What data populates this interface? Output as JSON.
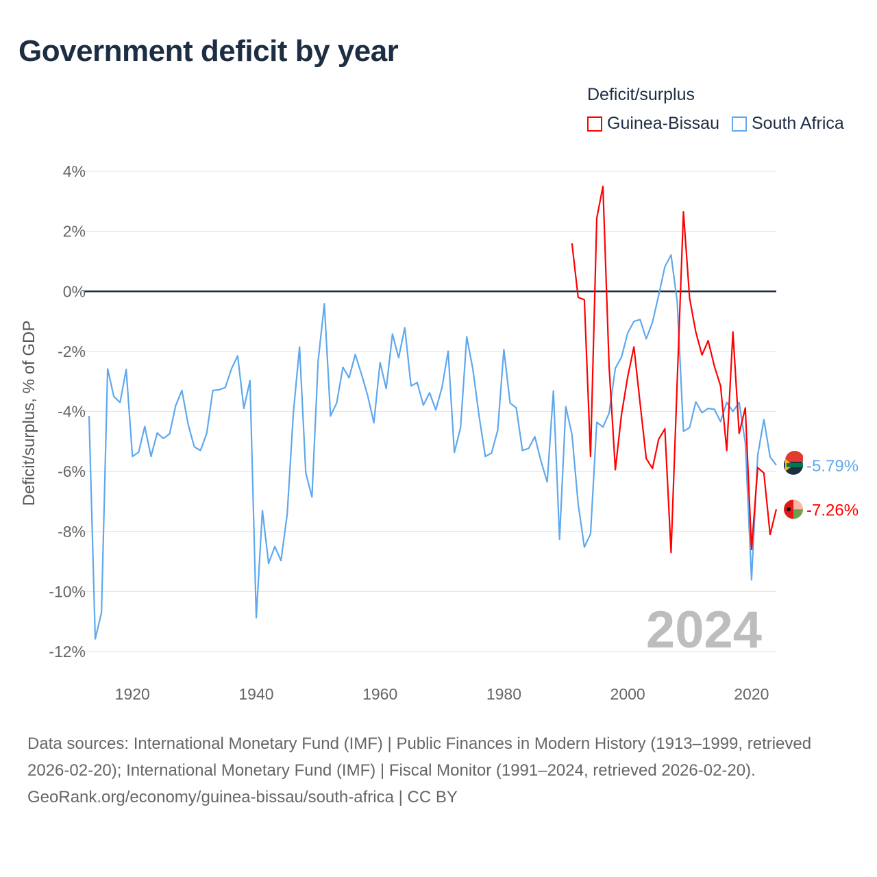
{
  "title": "Government deficit by year",
  "legend": {
    "title": "Deficit/surplus"
  },
  "footer": {
    "sources": "Data sources: International Monetary Fund (IMF) | Public Finances in Modern History (1913–1999, retrieved 2026-02-20); International Monetary Fund (IMF) | Fiscal Monitor (1991–2024, retrieved 2026-02-20).",
    "credit": "GeoRank.org/economy/guinea-bissau/south-africa | CC BY"
  },
  "chart_data": {
    "type": "line",
    "title": "Government deficit by year",
    "ylabel": "Deficit/surplus, % of GDP",
    "xlabel": "",
    "xlim": [
      1913,
      2024
    ],
    "ylim": [
      -12,
      4
    ],
    "yticks": [
      4,
      2,
      0,
      -2,
      -4,
      -6,
      -8,
      -10,
      -12
    ],
    "ytick_labels": [
      "4%",
      "2%",
      "0%",
      "-2%",
      "-4%",
      "-6%",
      "-8%",
      "-10%",
      "-12%"
    ],
    "xticks": [
      1920,
      1940,
      1960,
      1980,
      2000,
      2020
    ],
    "xtick_labels": [
      "1920",
      "1940",
      "1960",
      "1980",
      "2000",
      "2020"
    ],
    "grid": true,
    "legend_position": "top-right",
    "year_label": "2024",
    "series": [
      {
        "name": "Guinea-Bissau",
        "color": "#ff0000",
        "end_label": "-7.26%",
        "start_year": 1991,
        "values": [
          1.6,
          -0.2,
          -0.28,
          -5.5,
          2.44,
          3.5,
          -2.5,
          -5.94,
          -4.1,
          -2.85,
          -1.85,
          -3.72,
          -5.57,
          -5.9,
          -4.93,
          -4.58,
          -8.7,
          -3.0,
          2.65,
          -0.23,
          -1.35,
          -2.12,
          -1.64,
          -2.49,
          -3.15,
          -5.3,
          -1.35,
          -4.73,
          -3.88,
          -8.6,
          -5.87,
          -6.05,
          -8.1,
          -7.26
        ]
      },
      {
        "name": "South Africa",
        "color": "#5ea8ee",
        "end_label": "-5.79%",
        "start_year": 1913,
        "values": [
          -4.15,
          -11.58,
          -10.7,
          -2.58,
          -3.5,
          -3.7,
          -2.6,
          -5.5,
          -5.36,
          -4.5,
          -5.5,
          -4.72,
          -4.9,
          -4.75,
          -3.8,
          -3.3,
          -4.43,
          -5.18,
          -5.3,
          -4.73,
          -3.3,
          -3.28,
          -3.2,
          -2.58,
          -2.15,
          -3.9,
          -2.97,
          -10.87,
          -7.3,
          -9.06,
          -8.5,
          -8.97,
          -7.42,
          -4.04,
          -1.85,
          -6.05,
          -6.85,
          -2.33,
          -0.41,
          -4.15,
          -3.72,
          -2.53,
          -2.88,
          -2.1,
          -2.76,
          -3.47,
          -4.38,
          -2.37,
          -3.24,
          -1.42,
          -2.21,
          -1.21,
          -3.15,
          -3.04,
          -3.79,
          -3.38,
          -3.95,
          -3.2,
          -1.99,
          -5.37,
          -4.54,
          -1.51,
          -2.6,
          -4.16,
          -5.5,
          -5.39,
          -4.63,
          -1.94,
          -3.72,
          -3.88,
          -5.3,
          -5.23,
          -4.84,
          -5.66,
          -6.35,
          -3.31,
          -8.26,
          -3.84,
          -4.77,
          -7.08,
          -8.52,
          -8.08,
          -4.36,
          -4.52,
          -4.06,
          -2.56,
          -2.19,
          -1.39,
          -1.0,
          -0.94,
          -1.58,
          -1.03,
          -0.14,
          0.82,
          1.21,
          -0.34,
          -4.66,
          -4.54,
          -3.68,
          -4.04,
          -3.9,
          -3.93,
          -4.34,
          -3.7,
          -4.0,
          -3.7,
          -5.05,
          -9.61,
          -5.46,
          -4.27,
          -5.52,
          -5.79
        ]
      }
    ]
  }
}
